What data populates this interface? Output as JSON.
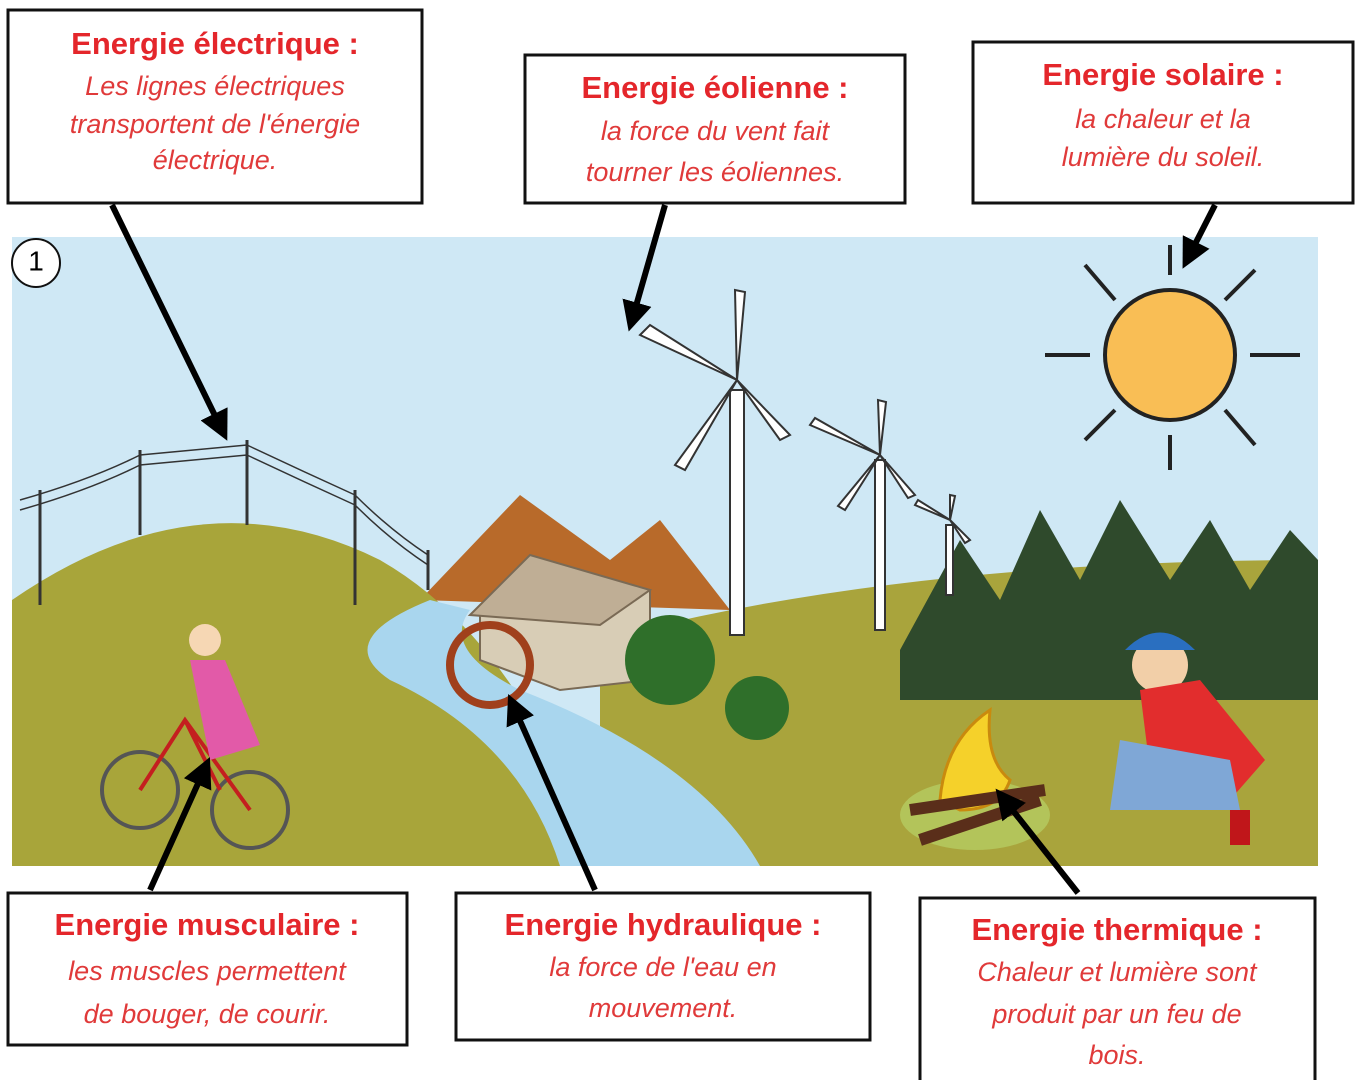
{
  "scene_marker": "1",
  "boxes": [
    {
      "title": "Energie électrique :",
      "lines": [
        "Les lignes électriques",
        "transportent de l'énergie",
        "électrique."
      ]
    },
    {
      "title": "Energie éolienne :",
      "lines": [
        "la force du vent fait",
        "tourner les éoliennes."
      ]
    },
    {
      "title": "Energie solaire :",
      "lines": [
        "la chaleur et la",
        "lumière du soleil."
      ]
    },
    {
      "title": "Energie musculaire :",
      "lines": [
        "les muscles permettent",
        "de bouger, de courir."
      ]
    },
    {
      "title": "Energie hydraulique :",
      "lines": [
        "la force de l'eau en",
        "mouvement."
      ]
    },
    {
      "title": "Energie thermique :",
      "lines": [
        "Chaleur et lumière sont",
        "produit par un feu de",
        "bois."
      ]
    }
  ]
}
